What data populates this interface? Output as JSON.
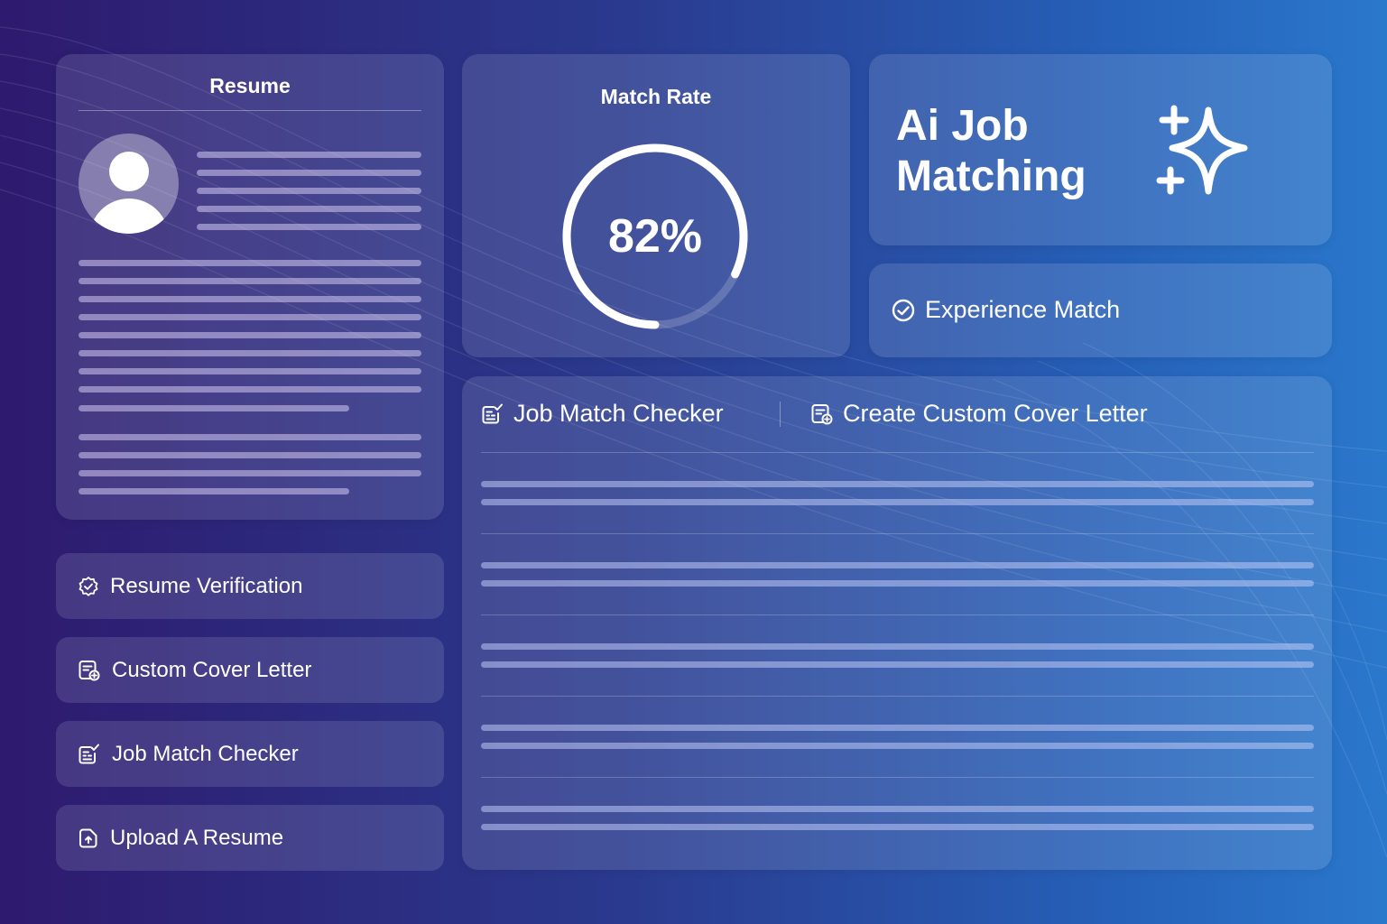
{
  "resume": {
    "title": "Resume"
  },
  "match": {
    "title": "Match Rate",
    "value_text": "82%",
    "progress": 0.82
  },
  "ai": {
    "title": "Ai Job Matching"
  },
  "experience": {
    "label": "Experience Match"
  },
  "features": [
    {
      "label": "Resume Verification",
      "icon": "verified-badge-icon"
    },
    {
      "label": "Custom Cover Letter",
      "icon": "cover-letter-icon"
    },
    {
      "label": "Job Match Checker",
      "icon": "checklist-icon"
    },
    {
      "label": "Upload A Resume",
      "icon": "upload-file-icon"
    }
  ],
  "panel": {
    "tabs": [
      {
        "label": "Job Match Checker",
        "icon": "checklist-icon"
      },
      {
        "label": "Create Custom Cover Letter",
        "icon": "cover-letter-icon"
      }
    ]
  }
}
